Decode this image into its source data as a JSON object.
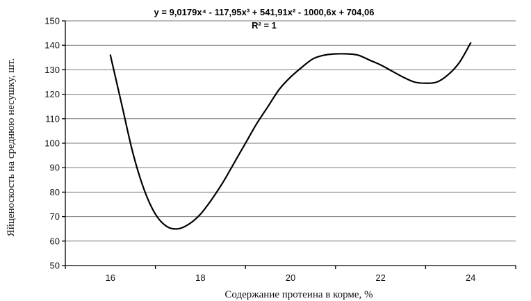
{
  "chart_data": {
    "type": "line",
    "trendline_equation": "y = 9,0179x⁴ - 117,95x³ + 541,91x² - 1000,6x + 704,06",
    "r_squared_label": "R² = 1",
    "xlabel": "Содержание протеина в корме, %",
    "ylabel": "Яйценоскость на среднюю несушку, шт.",
    "xlim": [
      15,
      25
    ],
    "ylim": [
      50,
      150
    ],
    "x_ticks": [
      16,
      18,
      20,
      22,
      24
    ],
    "x_tick_labels": [
      "16",
      "18",
      "20",
      "22",
      "24"
    ],
    "y_ticks": [
      50,
      60,
      70,
      80,
      90,
      100,
      110,
      120,
      130,
      140,
      150
    ],
    "y_tick_labels": [
      "50",
      "60",
      "70",
      "80",
      "90",
      "100",
      "110",
      "120",
      "130",
      "140",
      "150"
    ],
    "grid": "horizontal",
    "series": [
      {
        "x": [
          16.0,
          16.25,
          16.5,
          16.75,
          17.0,
          17.25,
          17.5,
          17.75,
          18.0,
          18.25,
          18.5,
          18.75,
          19.0,
          19.25,
          19.5,
          19.75,
          20.0,
          20.25,
          20.5,
          20.75,
          21.0,
          21.25,
          21.5,
          21.75,
          22.0,
          22.25,
          22.5,
          22.75,
          23.0,
          23.25,
          23.5,
          23.75,
          24.0
        ],
        "y": [
          136,
          116,
          96,
          81,
          71,
          66,
          65,
          67,
          71,
          77,
          84,
          92,
          100,
          108,
          115,
          122,
          127,
          131,
          134.5,
          136,
          136.5,
          136.5,
          136,
          134,
          132,
          129.5,
          127,
          125,
          124.5,
          125,
          128,
          133,
          141
        ]
      }
    ]
  }
}
